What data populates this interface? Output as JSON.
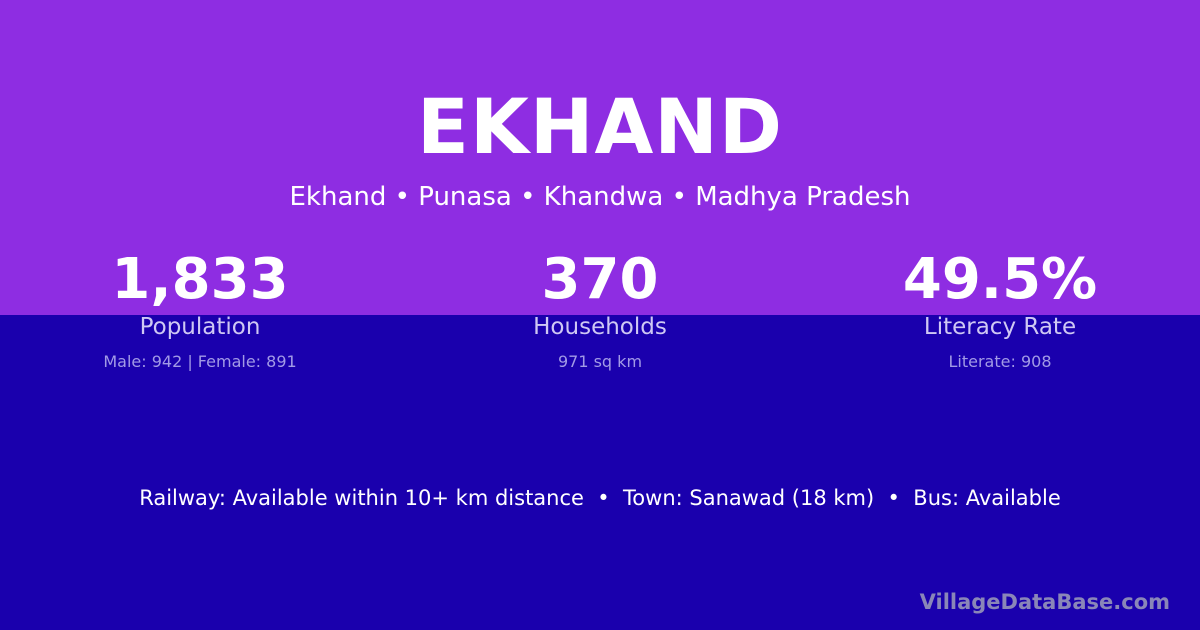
{
  "colors": {
    "top_band": "#8e2de2",
    "bottom_band": "#1a00ad"
  },
  "title": "EKHAND",
  "subtitle": "Ekhand • Punasa • Khandwa • Madhya Pradesh",
  "stats": [
    {
      "value": "1,833",
      "label": "Population",
      "detail": "Male: 942 | Female: 891"
    },
    {
      "value": "370",
      "label": "Households",
      "detail": "971 sq km"
    },
    {
      "value": "49.5%",
      "label": "Literacy Rate",
      "detail": "Literate: 908"
    }
  ],
  "info": "Railway: Available within 10+ km distance  •  Town: Sanawad (18 km)  •  Bus: Available",
  "watermark": "VillageDataBase.com"
}
